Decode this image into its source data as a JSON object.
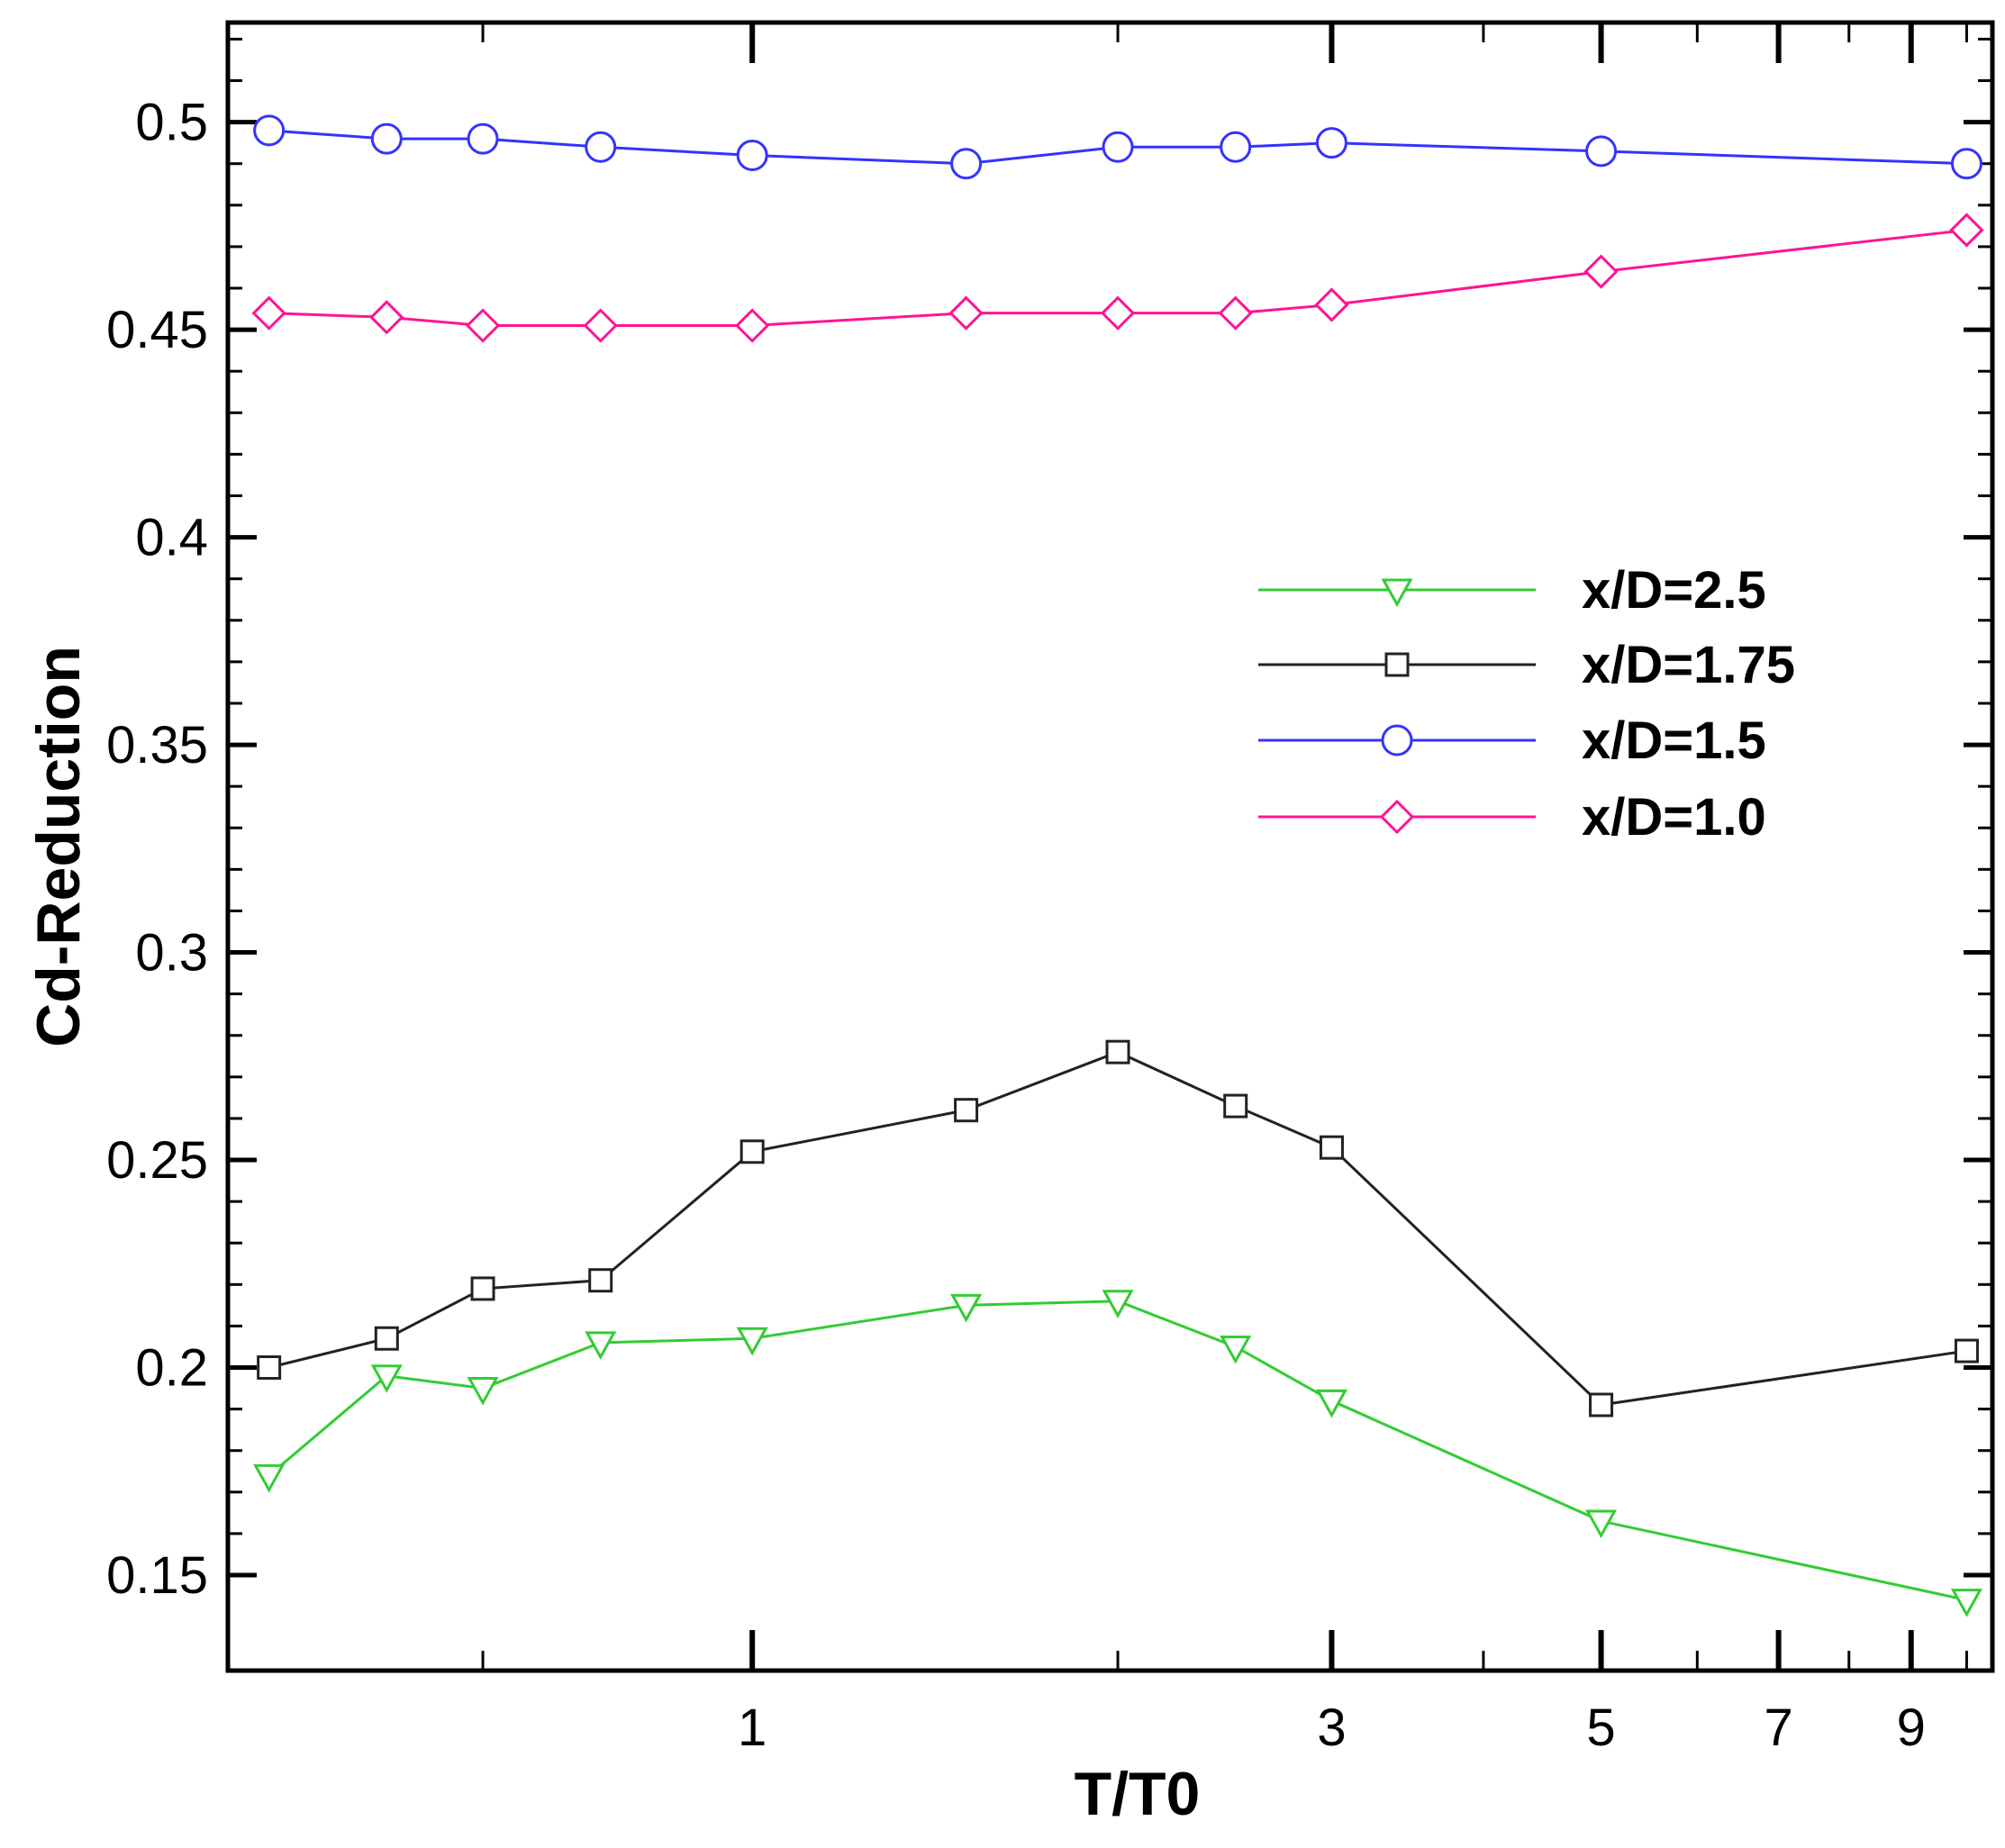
{
  "chart_data": {
    "type": "line",
    "title": "",
    "xlabel": "T/T0",
    "ylabel": "Cd-Reduction",
    "xscale": "log",
    "xlim": [
      0.37,
      10.5
    ],
    "ylim": [
      0.127,
      0.524
    ],
    "grid": false,
    "legend_position": "center-right",
    "x_ticks": [
      {
        "value": 1,
        "label": "1"
      },
      {
        "value": 3,
        "label": "3"
      },
      {
        "value": 5,
        "label": "5"
      },
      {
        "value": 7,
        "label": "7"
      },
      {
        "value": 9,
        "label": "9"
      }
    ],
    "x_minor_ticks": [
      0.6,
      2,
      4,
      6,
      8,
      10
    ],
    "y_ticks": [
      {
        "value": 0.15,
        "label": "0.15"
      },
      {
        "value": 0.2,
        "label": "0.2"
      },
      {
        "value": 0.25,
        "label": "0.25"
      },
      {
        "value": 0.3,
        "label": "0.3"
      },
      {
        "value": 0.35,
        "label": "0.35"
      },
      {
        "value": 0.4,
        "label": "0.4"
      },
      {
        "value": 0.45,
        "label": "0.45"
      },
      {
        "value": 0.5,
        "label": "0.5"
      }
    ],
    "y_minor_ticks": [
      0.16,
      0.17,
      0.18,
      0.19,
      0.21,
      0.22,
      0.23,
      0.24,
      0.26,
      0.27,
      0.28,
      0.29,
      0.31,
      0.32,
      0.33,
      0.34,
      0.36,
      0.37,
      0.38,
      0.39,
      0.41,
      0.42,
      0.43,
      0.44,
      0.46,
      0.47,
      0.48,
      0.49,
      0.51,
      0.52
    ],
    "x": [
      0.4,
      0.5,
      0.6,
      0.75,
      1.0,
      1.5,
      2.0,
      2.5,
      3.0,
      5.0,
      10.0
    ],
    "series": [
      {
        "name": "x/D=2.5",
        "color": "#33cc33",
        "marker": "triangle-down",
        "values": [
          0.174,
          0.198,
          0.195,
          0.206,
          0.207,
          0.215,
          0.216,
          0.205,
          0.192,
          0.163,
          0.144
        ]
      },
      {
        "name": "x/D=1.75",
        "color": "#222222",
        "marker": "square",
        "values": [
          0.2,
          0.207,
          0.219,
          0.221,
          0.252,
          0.262,
          0.276,
          0.263,
          0.253,
          0.191,
          0.204
        ]
      },
      {
        "name": "x/D=1.5",
        "color": "#3333ff",
        "marker": "circle",
        "values": [
          0.498,
          0.496,
          0.496,
          0.494,
          0.492,
          0.49,
          0.494,
          0.494,
          0.495,
          0.493,
          0.49
        ]
      },
      {
        "name": "x/D=1.0",
        "color": "#ff1493",
        "marker": "diamond",
        "values": [
          0.454,
          0.453,
          0.451,
          0.451,
          0.451,
          0.454,
          0.454,
          0.454,
          0.456,
          0.464,
          0.474
        ]
      }
    ]
  }
}
